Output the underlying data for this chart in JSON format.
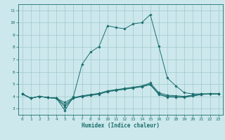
{
  "xlabel": "Humidex (Indice chaleur)",
  "bg_color": "#cce8ec",
  "grid_color": "#a0c8cc",
  "line_color": "#1a6e6e",
  "xlim": [
    -0.5,
    23.5
  ],
  "ylim": [
    2.5,
    11.5
  ],
  "yticks": [
    3,
    4,
    5,
    6,
    7,
    8,
    9,
    10,
    11
  ],
  "xticks": [
    0,
    1,
    2,
    3,
    4,
    5,
    6,
    7,
    8,
    9,
    10,
    11,
    12,
    13,
    14,
    15,
    16,
    17,
    18,
    19,
    20,
    21,
    22,
    23
  ],
  "series": [
    {
      "x": [
        0,
        1,
        2,
        3,
        4,
        5,
        6,
        7,
        8,
        9,
        10,
        11,
        12,
        13,
        14,
        15,
        16,
        17,
        18,
        19,
        20,
        21,
        22,
        23
      ],
      "y": [
        4.2,
        3.85,
        4.0,
        3.9,
        3.85,
        2.85,
        4.0,
        6.6,
        7.6,
        8.05,
        9.75,
        9.6,
        9.5,
        9.9,
        10.0,
        10.65,
        8.1,
        5.5,
        4.85,
        4.3,
        4.2,
        4.2,
        4.2,
        4.2
      ]
    },
    {
      "x": [
        0,
        1,
        2,
        3,
        4,
        5,
        6,
        7,
        8,
        9,
        10,
        11,
        12,
        13,
        14,
        15,
        16,
        17,
        18,
        19,
        20,
        21,
        22,
        23
      ],
      "y": [
        4.2,
        3.85,
        4.0,
        3.9,
        3.85,
        3.5,
        3.9,
        4.05,
        4.15,
        4.25,
        4.45,
        4.55,
        4.65,
        4.75,
        4.85,
        5.1,
        4.3,
        4.1,
        4.05,
        4.0,
        4.1,
        4.2,
        4.2,
        4.2
      ]
    },
    {
      "x": [
        0,
        1,
        2,
        3,
        4,
        5,
        6,
        7,
        8,
        9,
        10,
        11,
        12,
        13,
        14,
        15,
        16,
        17,
        18,
        19,
        20,
        21,
        22,
        23
      ],
      "y": [
        4.2,
        3.85,
        4.0,
        3.9,
        3.85,
        3.3,
        3.88,
        4.0,
        4.1,
        4.2,
        4.4,
        4.5,
        4.6,
        4.7,
        4.8,
        5.0,
        4.2,
        4.0,
        3.98,
        3.97,
        4.07,
        4.18,
        4.2,
        4.2
      ]
    },
    {
      "x": [
        0,
        1,
        2,
        3,
        4,
        5,
        6,
        7,
        8,
        9,
        10,
        11,
        12,
        13,
        14,
        15,
        16,
        17,
        18,
        19,
        20,
        21,
        22,
        23
      ],
      "y": [
        4.2,
        3.85,
        4.0,
        3.9,
        3.85,
        3.15,
        3.85,
        3.98,
        4.08,
        4.18,
        4.38,
        4.48,
        4.58,
        4.68,
        4.78,
        4.95,
        4.15,
        3.95,
        3.93,
        3.92,
        4.02,
        4.15,
        4.2,
        4.2
      ]
    }
  ]
}
